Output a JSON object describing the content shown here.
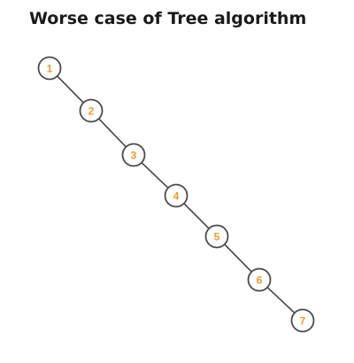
{
  "title": "Worse case of Tree algorithm",
  "colors": {
    "label": "#f39a2b",
    "node_stroke": "#4a4a4a",
    "edge": "#444444"
  },
  "tree": {
    "nodes": [
      {
        "label": "1"
      },
      {
        "label": "2"
      },
      {
        "label": "3"
      },
      {
        "label": "4"
      },
      {
        "label": "5"
      },
      {
        "label": "6"
      },
      {
        "label": "7"
      }
    ],
    "edges": [
      [
        "1",
        "2"
      ],
      [
        "2",
        "3"
      ],
      [
        "3",
        "4"
      ],
      [
        "4",
        "5"
      ],
      [
        "5",
        "6"
      ],
      [
        "6",
        "7"
      ]
    ]
  }
}
